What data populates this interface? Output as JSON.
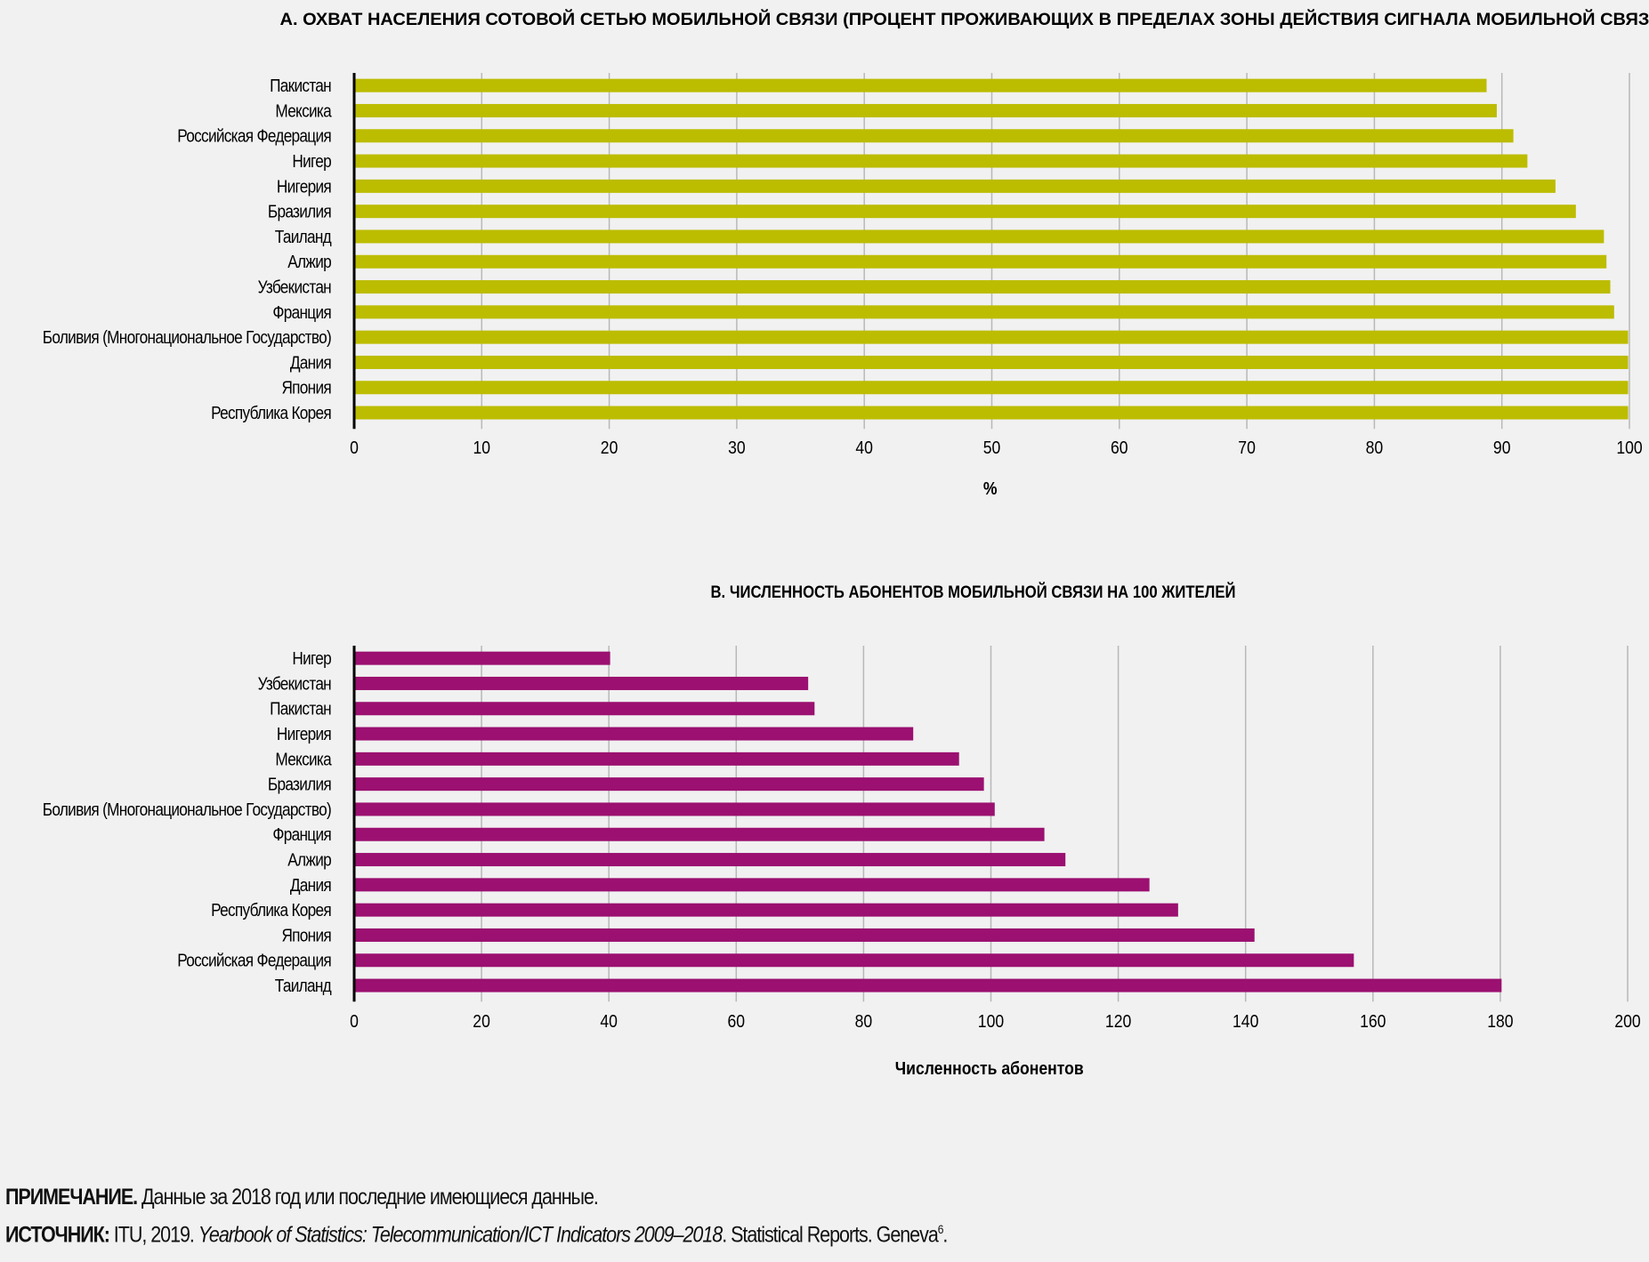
{
  "chart_data": [
    {
      "type": "bar",
      "orientation": "horizontal",
      "title": "А. ОХВАТ НАСЕЛЕНИЯ СОТОВОЙ СЕТЬЮ МОБИЛЬНОЙ СВЯЗИ (ПРОЦЕНТ ПРОЖИВАЮЩИХ В ПРЕДЕЛАХ ЗОНЫ ДЕЙСТВИЯ СИГНАЛА МОБИЛЬНОЙ СВЯЗИ)",
      "categories": [
        "Пакистан",
        "Мексика",
        "Российская Федерация",
        "Нигер",
        "Нигерия",
        "Бразилия",
        "Таиланд",
        "Алжир",
        "Узбекистан",
        "Франция",
        "Боливия (Многонациональное Государство)",
        "Дания",
        "Япония",
        "Республика Корея"
      ],
      "values": [
        88.8,
        89.6,
        90.9,
        92.0,
        94.2,
        95.8,
        98.0,
        98.2,
        98.5,
        98.8,
        99.9,
        99.9,
        99.9,
        99.9
      ],
      "xlabel": "%",
      "ylabel": "",
      "xlim": [
        0,
        100
      ],
      "ticks": [
        "0",
        "10",
        "20",
        "30",
        "40",
        "50",
        "60",
        "70",
        "80",
        "90",
        "100"
      ],
      "tick_values": [
        0,
        10,
        20,
        30,
        40,
        50,
        60,
        70,
        80,
        90,
        100
      ],
      "grid": true,
      "color": "#bcbc00"
    },
    {
      "type": "bar",
      "orientation": "horizontal",
      "title": "В. ЧИСЛЕННОСТЬ АБОНЕНТОВ МОБИЛЬНОЙ СВЯЗИ НА 100 ЖИТЕЛЕЙ",
      "categories": [
        "Нигер",
        "Узбекистан",
        "Пакистан",
        "Нигерия",
        "Мексика",
        "Бразилия",
        "Боливия (Многонациональное Государство)",
        "Франция",
        "Алжир",
        "Дания",
        "Республика Корея",
        "Япония",
        "Российская Федерация",
        "Таиланд"
      ],
      "values": [
        40.2,
        71.3,
        72.3,
        87.8,
        95.0,
        98.9,
        100.6,
        108.4,
        111.7,
        124.9,
        129.4,
        141.4,
        157.0,
        180.2
      ],
      "xlabel": "Численность абонентов",
      "ylabel": "",
      "xlim": [
        0,
        200
      ],
      "ticks": [
        "0",
        "20",
        "40",
        "60",
        "80",
        "100",
        "120",
        "140",
        "160",
        "180",
        "200"
      ],
      "tick_values": [
        0,
        20,
        40,
        60,
        80,
        100,
        120,
        140,
        160,
        180,
        200
      ],
      "grid": true,
      "color": "#9b1070"
    }
  ],
  "footer": {
    "note_label": "ПРИМЕЧАНИЕ.",
    "note_text": " Данные за 2018 год или последние имеющиеся данные.",
    "source_label": "ИСТОЧНИК:",
    "source_text1": " ITU, 2019. ",
    "source_title": "Yearbook of Statistics: Telecommunication/ICT Indicators 2009–2018",
    "source_text2": ". Statistical Reports. Geneva",
    "source_sup": "6",
    "source_end": "."
  }
}
